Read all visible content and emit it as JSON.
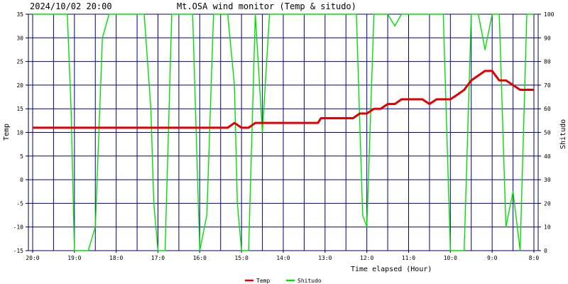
{
  "header": {
    "timestamp": "2024/10/02 20:00",
    "title": "Mt.OSA wind monitor (Temp & situdo)"
  },
  "chart_data": {
    "type": "line",
    "title": "Mt.OSA wind monitor (Temp & situdo)",
    "xlabel": "Time elapsed (Hour)",
    "ylabel": "Temp",
    "y2label": "Shitudo",
    "ylim": [
      -15,
      35
    ],
    "y2lim": [
      0,
      100
    ],
    "xlim": [
      0,
      12
    ],
    "x_reversed": true,
    "x_ticks": [
      0,
      1,
      2,
      3,
      4,
      5,
      6,
      7,
      8,
      9,
      10,
      11,
      12
    ],
    "x_tick_labels": [
      "20:0",
      "19:0",
      "18:0",
      "17:0",
      "16:0",
      "15:0",
      "14:0",
      "13:0",
      "12:0",
      "11:0",
      "10:0",
      "9:0",
      "8:0"
    ],
    "y_ticks": [
      -15,
      -10,
      -5,
      0,
      5,
      10,
      15,
      20,
      25,
      30,
      35
    ],
    "y2_ticks": [
      0,
      10,
      20,
      30,
      40,
      50,
      60,
      70,
      80,
      90,
      100
    ],
    "grid": true,
    "legend_position": "bottom-center",
    "colors": {
      "temp": "#e00000",
      "shitudo": "#00e000",
      "grid": "#000080",
      "background": "#ffffff"
    },
    "series": [
      {
        "name": "Temp",
        "axis": "left",
        "x": [
          0,
          4.67,
          4.83,
          5.0,
          5.17,
          5.33,
          6.0,
          6.83,
          6.9,
          7.67,
          7.83,
          8.0,
          8.17,
          8.33,
          8.5,
          8.67,
          8.83,
          9.0,
          9.33,
          9.5,
          9.67,
          9.83,
          10.0,
          10.17,
          10.33,
          10.5,
          10.83,
          11.0,
          11.17,
          11.33,
          11.67,
          12.0
        ],
        "y": [
          11,
          11,
          12,
          11,
          11,
          12,
          12,
          12,
          13,
          13,
          14,
          14,
          15,
          15,
          16,
          16,
          17,
          17,
          17,
          16,
          17,
          17,
          17,
          18,
          19,
          21,
          23,
          23,
          21,
          21,
          19,
          19
        ]
      },
      {
        "name": "Shitudo",
        "axis": "right",
        "x": [
          0,
          0.83,
          0.92,
          1.0,
          1.33,
          1.5,
          1.67,
          1.83,
          2.33,
          2.67,
          2.83,
          2.9,
          3.0,
          3.17,
          3.33,
          3.67,
          3.83,
          4.0,
          4.17,
          4.33,
          4.5,
          4.67,
          4.83,
          4.9,
          5.0,
          5.17,
          5.33,
          5.5,
          5.67,
          5.83,
          6.0,
          6.5,
          7.0,
          7.5,
          7.75,
          7.9,
          8.0,
          8.17,
          8.5,
          8.67,
          8.83,
          9.0,
          9.5,
          9.83,
          10.0,
          10.33,
          10.5,
          10.67,
          10.83,
          11.0,
          11.17,
          11.33,
          11.5,
          11.67,
          11.83,
          12.0
        ],
        "y": [
          100,
          100,
          60,
          0,
          0,
          10,
          90,
          100,
          100,
          100,
          60,
          20,
          0,
          0,
          100,
          100,
          100,
          0,
          15,
          100,
          100,
          100,
          70,
          20,
          0,
          0,
          100,
          50,
          100,
          100,
          100,
          100,
          100,
          100,
          100,
          15,
          10,
          100,
          100,
          95,
          100,
          100,
          100,
          100,
          0,
          0,
          100,
          100,
          85,
          100,
          100,
          10,
          25,
          0,
          100,
          100
        ]
      }
    ]
  }
}
